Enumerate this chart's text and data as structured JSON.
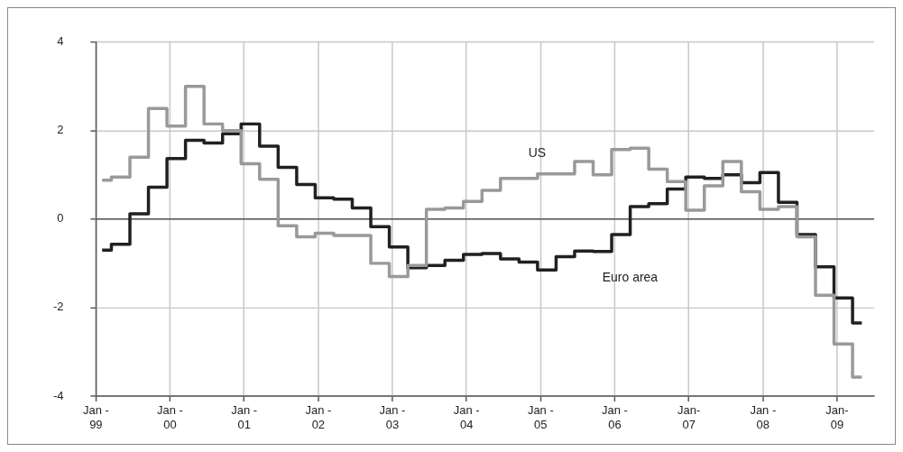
{
  "chart_data": {
    "type": "step",
    "x": [
      "1999-02",
      "1999-05",
      "1999-08",
      "1999-11",
      "2000-02",
      "2000-05",
      "2000-08",
      "2000-11",
      "2001-02",
      "2001-05",
      "2001-08",
      "2001-11",
      "2002-02",
      "2002-05",
      "2002-08",
      "2002-11",
      "2003-02",
      "2003-05",
      "2003-08",
      "2003-11",
      "2004-02",
      "2004-05",
      "2004-08",
      "2004-11",
      "2005-02",
      "2005-05",
      "2005-08",
      "2005-11",
      "2006-02",
      "2006-05",
      "2006-08",
      "2006-11",
      "2007-02",
      "2007-05",
      "2007-08",
      "2007-11",
      "2008-02",
      "2008-05",
      "2008-08",
      "2008-11",
      "2009-02",
      "2009-05"
    ],
    "series": [
      {
        "name": "US",
        "color": "#999999",
        "values": [
          0.88,
          0.95,
          1.4,
          2.5,
          2.1,
          3.0,
          2.15,
          2.0,
          1.25,
          0.9,
          -0.15,
          -0.4,
          -0.32,
          -0.37,
          -0.37,
          -1.0,
          -1.3,
          -1.05,
          0.22,
          0.25,
          0.4,
          0.65,
          0.92,
          0.92,
          1.02,
          1.02,
          1.3,
          1.0,
          1.57,
          1.6,
          1.13,
          0.85,
          0.2,
          0.75,
          1.3,
          0.62,
          0.22,
          0.28,
          -0.4,
          -1.72,
          -2.82,
          -3.57
        ]
      },
      {
        "name": "Euro area",
        "color": "#231f20",
        "values": [
          -0.7,
          -0.57,
          0.12,
          0.72,
          1.37,
          1.78,
          1.72,
          1.93,
          2.15,
          1.65,
          1.17,
          0.78,
          0.48,
          0.45,
          0.25,
          -0.17,
          -0.63,
          -1.1,
          -1.05,
          -0.93,
          -0.8,
          -0.78,
          -0.9,
          -0.97,
          -1.15,
          -0.85,
          -0.72,
          -0.73,
          -0.35,
          0.28,
          0.35,
          0.68,
          0.95,
          0.92,
          1.0,
          0.82,
          1.05,
          0.38,
          -0.35,
          -1.08,
          -1.78,
          -2.35
        ]
      }
    ],
    "xlim": [
      "1999-01",
      "2009-07"
    ],
    "xticks": [
      {
        "value": "1999-01",
        "label": "Jan -\n99"
      },
      {
        "value": "2000-01",
        "label": "Jan -\n00"
      },
      {
        "value": "2001-01",
        "label": "Jan -\n01"
      },
      {
        "value": "2002-01",
        "label": "Jan -\n02"
      },
      {
        "value": "2003-01",
        "label": "Jan -\n03"
      },
      {
        "value": "2004-01",
        "label": "Jan -\n04"
      },
      {
        "value": "2005-01",
        "label": "Jan -\n05"
      },
      {
        "value": "2006-01",
        "label": "Jan -\n06"
      },
      {
        "value": "2007-01",
        "label": "Jan-\n07"
      },
      {
        "value": "2008-01",
        "label": "Jan -\n08"
      },
      {
        "value": "2009-01",
        "label": "Jan-\n09"
      }
    ],
    "ylim": [
      -4,
      4
    ],
    "yticks": [
      -4,
      -2,
      0,
      2,
      4
    ],
    "grid": true,
    "legend": false,
    "marker": "none",
    "line_style": "solid",
    "ref_lines": [
      {
        "axis": "y",
        "value": 0,
        "color": "#555555"
      }
    ]
  }
}
